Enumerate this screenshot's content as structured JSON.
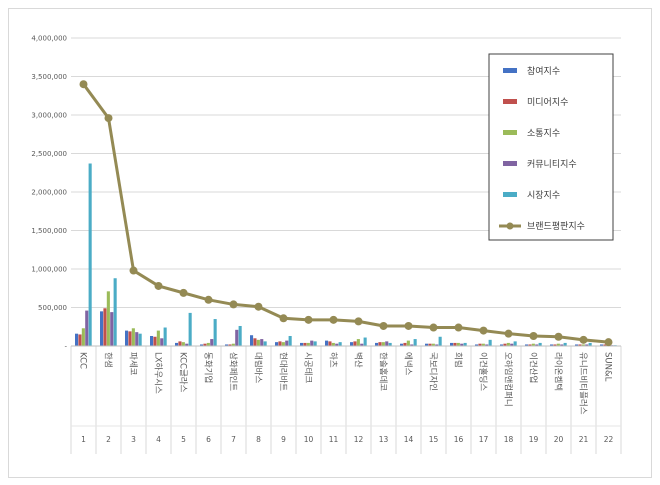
{
  "chart_data": {
    "type": "bar",
    "title": "",
    "xlabel": "",
    "ylabel": "",
    "ylim": [
      0,
      4000000
    ],
    "yticks": [
      "4,000,000",
      "3,500,000",
      "3,000,000",
      "2,500,000",
      "2,000,000",
      "1,500,000",
      "1,000,000",
      "500,000",
      "-"
    ],
    "ytick_values": [
      4000000,
      3500000,
      3000000,
      2500000,
      2000000,
      1500000,
      1000000,
      500000,
      0
    ],
    "grid": true,
    "legend_position": "top-right",
    "categories": [
      "KCC",
      "한샘",
      "파세코",
      "LX하우시스",
      "KCC글라스",
      "동화기업",
      "삼화페인트",
      "대림바스",
      "현대리바트",
      "시공테크",
      "하츠",
      "벽산",
      "한솔홈데코",
      "에넥스",
      "국보디자인",
      "희림",
      "이건홀딩스",
      "오하임앤컴퍼니",
      "이건산업",
      "라이온켐텍",
      "유니드비티플러스",
      "SUN&L"
    ],
    "ranks": [
      "1",
      "2",
      "3",
      "4",
      "5",
      "6",
      "7",
      "8",
      "9",
      "10",
      "11",
      "12",
      "13",
      "14",
      "15",
      "16",
      "17",
      "18",
      "19",
      "20",
      "21",
      "22"
    ],
    "series": [
      {
        "name": "참여지수",
        "color": "#4472c4",
        "kind": "bar",
        "values": [
          160000,
          450000,
          200000,
          130000,
          40000,
          20000,
          20000,
          140000,
          50000,
          40000,
          70000,
          50000,
          40000,
          30000,
          30000,
          40000,
          20000,
          20000,
          20000,
          20000,
          20000,
          20000
        ]
      },
      {
        "name": "미디어지수",
        "color": "#c0504d",
        "kind": "bar",
        "values": [
          150000,
          490000,
          190000,
          120000,
          60000,
          30000,
          20000,
          100000,
          60000,
          40000,
          60000,
          60000,
          50000,
          40000,
          30000,
          40000,
          30000,
          30000,
          20000,
          20000,
          20000,
          20000
        ]
      },
      {
        "name": "소통지수",
        "color": "#9bbb59",
        "kind": "bar",
        "values": [
          230000,
          710000,
          230000,
          200000,
          50000,
          40000,
          30000,
          80000,
          50000,
          40000,
          40000,
          90000,
          50000,
          70000,
          30000,
          40000,
          30000,
          40000,
          30000,
          30000,
          20000,
          20000
        ]
      },
      {
        "name": "커뮤니티지수",
        "color": "#8064a2",
        "kind": "bar",
        "values": [
          460000,
          440000,
          180000,
          100000,
          30000,
          90000,
          210000,
          90000,
          70000,
          70000,
          30000,
          30000,
          60000,
          20000,
          20000,
          30000,
          20000,
          30000,
          20000,
          20000,
          20000,
          10000
        ]
      },
      {
        "name": "시장지수",
        "color": "#4bacc6",
        "kind": "bar",
        "values": [
          2370000,
          880000,
          160000,
          240000,
          430000,
          350000,
          260000,
          60000,
          130000,
          60000,
          50000,
          110000,
          40000,
          90000,
          120000,
          40000,
          80000,
          60000,
          40000,
          40000,
          40000,
          10000
        ]
      },
      {
        "name": "브랜드평판지수",
        "color": "#948a54",
        "kind": "line",
        "values": [
          3400000,
          2960000,
          980000,
          780000,
          690000,
          600000,
          540000,
          510000,
          360000,
          340000,
          340000,
          320000,
          260000,
          260000,
          240000,
          240000,
          200000,
          160000,
          130000,
          120000,
          80000,
          50000
        ]
      }
    ]
  }
}
